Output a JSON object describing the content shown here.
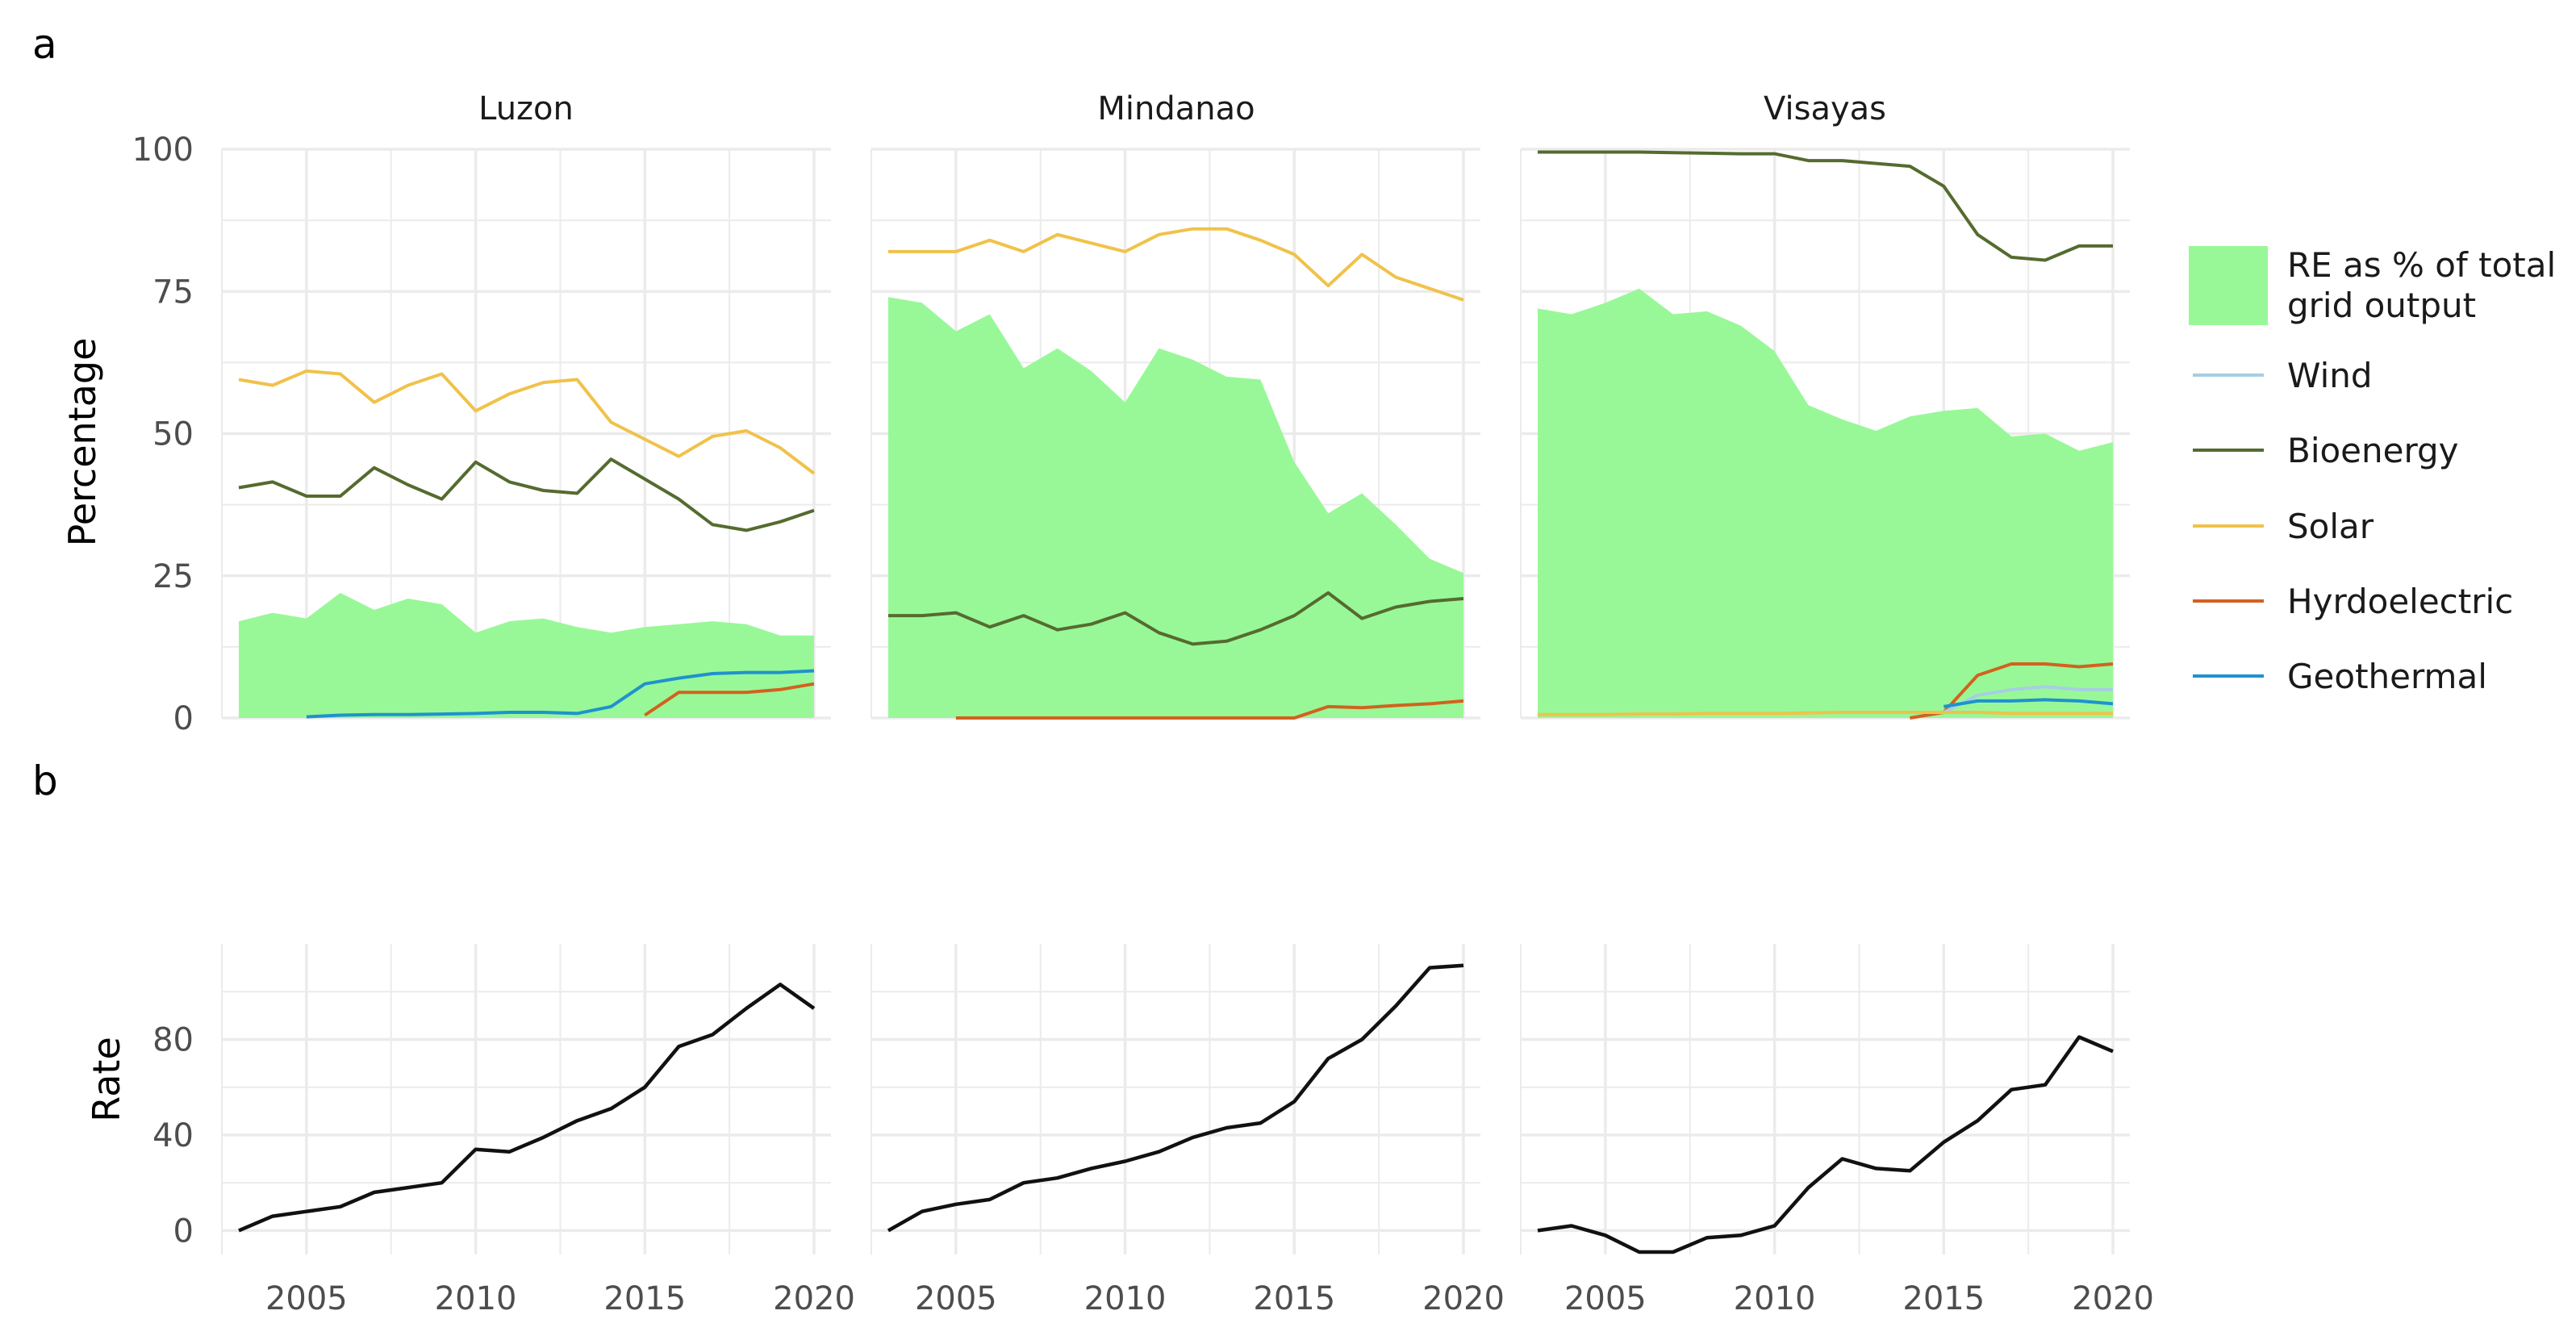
{
  "panel_labels": {
    "a": "a",
    "b": "b"
  },
  "colors": {
    "re_fill": "#98F898",
    "Wind": "#A6CEE3",
    "Bioenergy": "#556B2F",
    "Solar": "#F0C24A",
    "Hydroelectric": "#D2621E",
    "Geothermal": "#1F92CE",
    "rate": "#111111",
    "grid": "#EBEBEB",
    "axis_text": "#4D4D4D"
  },
  "legend": {
    "re_label_line1": "RE as % of total",
    "re_label_line2": "grid output",
    "items": [
      "Wind",
      "Bioenergy",
      "Solar",
      "Hyrdoelectric",
      "Geothermal"
    ]
  },
  "chart_data": [
    {
      "id": "panel-a",
      "type": "area+line",
      "facets": [
        "Luzon",
        "Mindanao",
        "Visayas"
      ],
      "ylabel": "Percentage",
      "xlabel": "",
      "ylim": [
        0,
        100
      ],
      "yticks": [
        0,
        25,
        50,
        75,
        100
      ],
      "xlim": [
        2002.5,
        2020.5
      ],
      "xticks": [
        2005,
        2010,
        2015,
        2020
      ],
      "years": [
        2003,
        2004,
        2005,
        2006,
        2007,
        2008,
        2009,
        2010,
        2011,
        2012,
        2013,
        2014,
        2015,
        2016,
        2017,
        2018,
        2019,
        2020
      ],
      "series": {
        "Luzon": {
          "RE": [
            17,
            18.5,
            17.5,
            22,
            19,
            21,
            20,
            15,
            17,
            17.5,
            16,
            15,
            16,
            16.5,
            17,
            16.5,
            14.5,
            14.5
          ],
          "Bioenergy": [
            40.5,
            41.5,
            39,
            39,
            44,
            41,
            38.5,
            45,
            41.5,
            40,
            39.5,
            45.5,
            42,
            38.5,
            34,
            33,
            34.5,
            36.5
          ],
          "Solar": [
            59.5,
            58.5,
            61,
            60.5,
            55.5,
            58.5,
            60.5,
            54,
            57,
            59,
            59.5,
            52,
            49,
            46,
            49.5,
            50.5,
            47.5,
            43
          ],
          "Hydroelectric": [
            null,
            null,
            null,
            null,
            null,
            null,
            null,
            null,
            null,
            null,
            null,
            null,
            0.5,
            4.5,
            4.5,
            4.5,
            5,
            6
          ],
          "Geothermal": [
            null,
            null,
            0.2,
            0.5,
            0.6,
            0.6,
            0.7,
            0.8,
            1,
            1,
            0.8,
            2,
            6,
            7,
            7.8,
            8,
            8,
            8.3
          ],
          "Wind": [
            null,
            null,
            null,
            null,
            null,
            null,
            null,
            null,
            null,
            null,
            null,
            null,
            null,
            null,
            null,
            null,
            null,
            null
          ]
        },
        "Mindanao": {
          "RE": [
            74,
            73,
            68,
            71,
            61.5,
            65,
            61,
            55.5,
            65,
            63,
            60,
            59.5,
            45,
            36,
            39.5,
            34,
            28,
            25.5
          ],
          "Bioenergy": [
            18,
            18,
            18.5,
            16,
            18,
            15.5,
            16.5,
            18.5,
            15,
            13,
            13.5,
            15.5,
            18,
            22,
            17.5,
            19.5,
            20.5,
            21
          ],
          "Solar": [
            82,
            82,
            82,
            84,
            82,
            85,
            83.5,
            82,
            85,
            86,
            86,
            84,
            81.5,
            76,
            81.5,
            77.5,
            75.5,
            73.5
          ],
          "Hydroelectric": [
            null,
            null,
            0,
            0,
            0,
            0,
            0,
            0,
            0,
            0,
            0,
            0,
            0,
            2,
            1.8,
            2.2,
            2.5,
            3
          ],
          "Geothermal": [
            null,
            null,
            null,
            null,
            null,
            null,
            null,
            null,
            null,
            null,
            null,
            null,
            null,
            null,
            null,
            null,
            null,
            null
          ],
          "Wind": [
            null,
            null,
            null,
            null,
            null,
            null,
            null,
            null,
            null,
            null,
            null,
            null,
            null,
            null,
            null,
            null,
            null,
            null
          ]
        },
        "Visayas": {
          "RE": [
            72,
            71,
            73,
            75.5,
            71,
            71.5,
            69,
            64.5,
            55,
            52.5,
            50.5,
            53,
            54,
            54.5,
            49.5,
            50,
            47,
            48.5
          ],
          "Bioenergy": [
            99.5,
            99.5,
            99.5,
            99.5,
            99.4,
            99.3,
            99.2,
            99.2,
            98,
            98,
            97.5,
            97,
            93.5,
            85,
            81,
            80.5,
            83,
            83
          ],
          "Solar": [
            0.6,
            0.6,
            0.6,
            0.7,
            0.7,
            0.8,
            0.8,
            0.8,
            0.9,
            1,
            1,
            1,
            1,
            1,
            0.8,
            0.8,
            0.8,
            0.8
          ],
          "Hydroelectric": [
            null,
            null,
            null,
            null,
            null,
            null,
            null,
            null,
            null,
            null,
            null,
            0,
            1,
            7.5,
            9.5,
            9.5,
            9,
            9.5
          ],
          "Geothermal": [
            null,
            null,
            null,
            null,
            null,
            null,
            null,
            null,
            null,
            null,
            null,
            null,
            2,
            3,
            3,
            3.2,
            3,
            2.5
          ],
          "Wind": [
            null,
            null,
            null,
            null,
            null,
            null,
            null,
            null,
            null,
            null,
            null,
            null,
            1,
            4,
            5,
            5.5,
            5,
            5
          ]
        }
      }
    },
    {
      "id": "panel-b",
      "type": "line",
      "facets": [
        "Luzon",
        "Mindanao",
        "Visayas"
      ],
      "ylabel": "Rate",
      "xlabel": "",
      "ylim": [
        -10,
        120
      ],
      "yticks": [
        0,
        40,
        80
      ],
      "xlim": [
        2002.5,
        2020.5
      ],
      "xticks": [
        2005,
        2010,
        2015,
        2020
      ],
      "xtick_labels": [
        "2005",
        "2010",
        "2015",
        "2020"
      ],
      "years": [
        2003,
        2004,
        2005,
        2006,
        2007,
        2008,
        2009,
        2010,
        2011,
        2012,
        2013,
        2014,
        2015,
        2016,
        2017,
        2018,
        2019,
        2020
      ],
      "series": {
        "Luzon": [
          0,
          6,
          8,
          10,
          16,
          18,
          20,
          34,
          33,
          39,
          46,
          51,
          60,
          77,
          82,
          93,
          103,
          93
        ],
        "Mindanao": [
          0,
          8,
          11,
          13,
          20,
          22,
          26,
          29,
          33,
          39,
          43,
          45,
          54,
          72,
          80,
          94,
          110,
          111
        ],
        "Visayas": [
          0,
          2,
          -2,
          -9,
          -9,
          -3,
          -2,
          2,
          18,
          30,
          26,
          25,
          37,
          46,
          59,
          61,
          81,
          75
        ]
      }
    }
  ]
}
